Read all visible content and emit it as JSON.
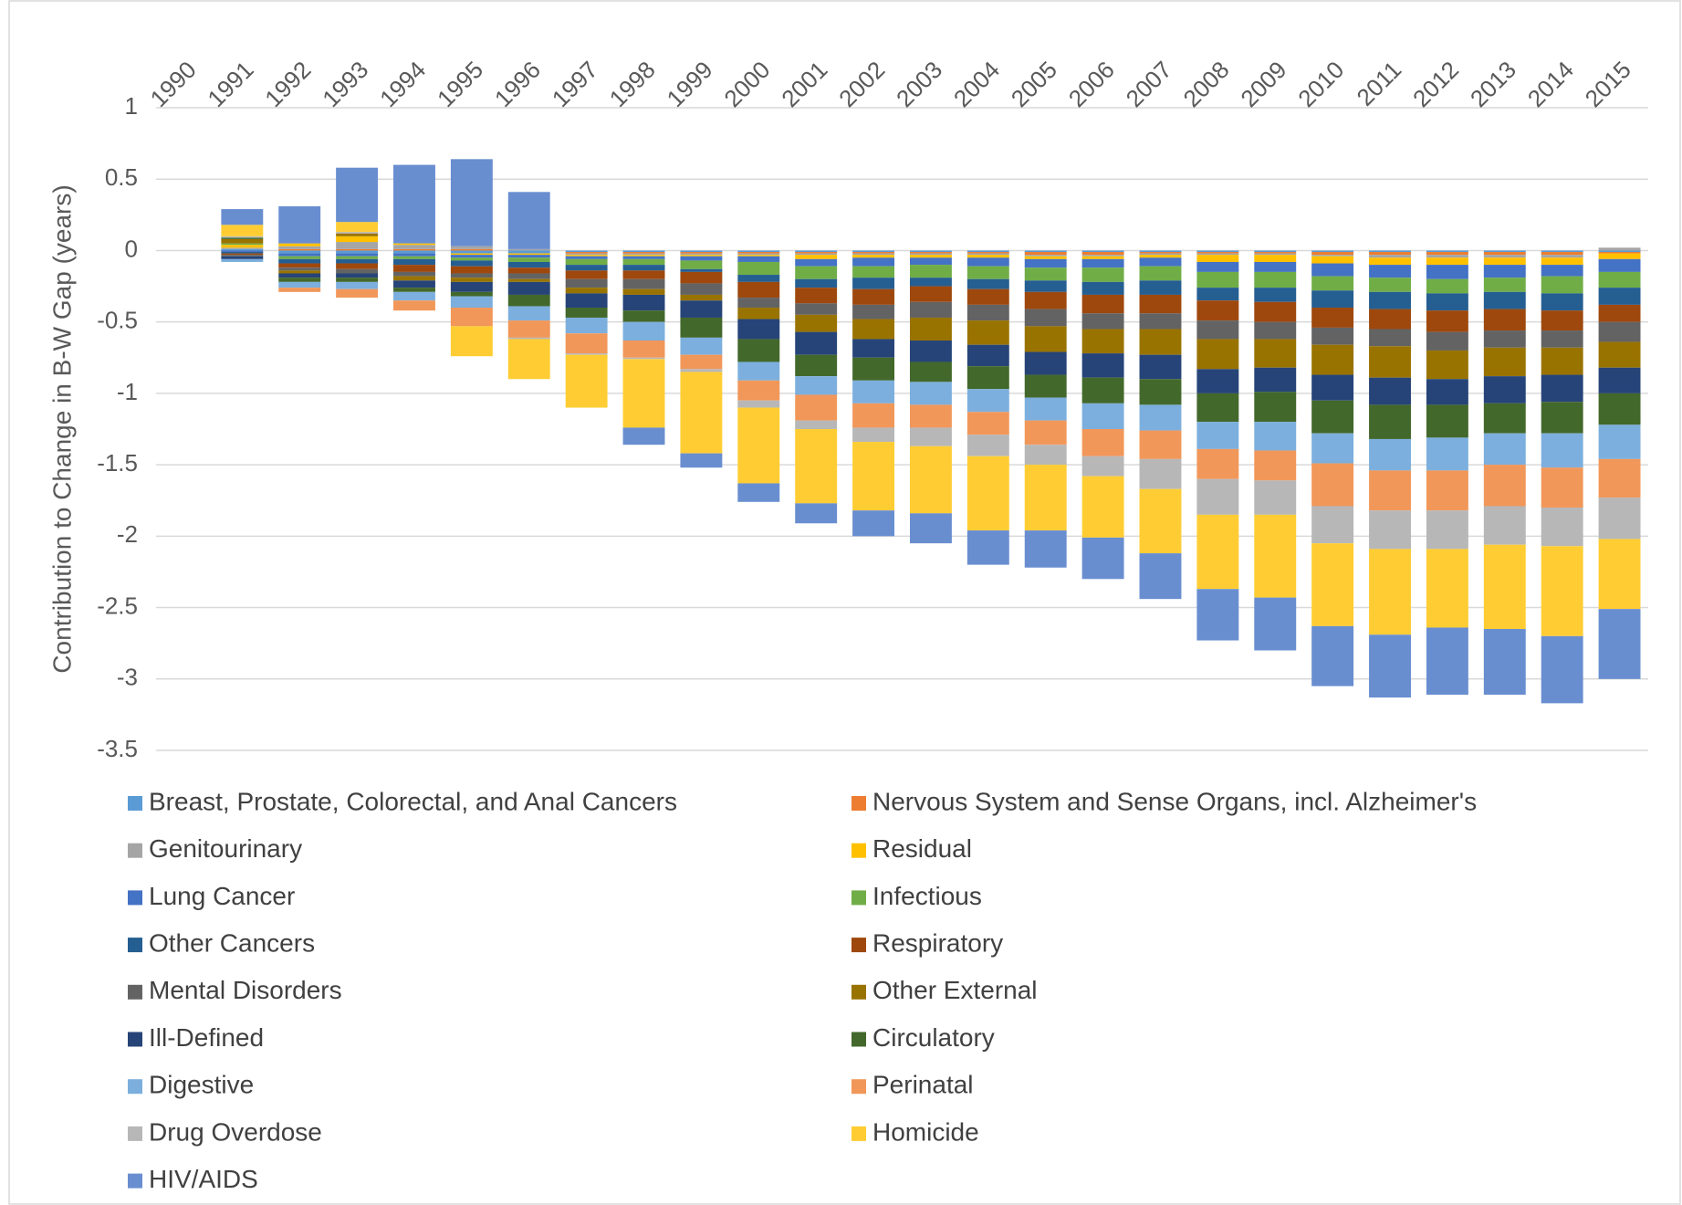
{
  "chart_data": {
    "type": "stacked_bar",
    "y_label": "Contribution to Change in B-W Gap (years)",
    "categories": [
      "1990",
      "1991",
      "1992",
      "1993",
      "1994",
      "1995",
      "1996",
      "1997",
      "1998",
      "1999",
      "2000",
      "2001",
      "2002",
      "2003",
      "2004",
      "2005",
      "2006",
      "2007",
      "2008",
      "2009",
      "2010",
      "2011",
      "2012",
      "2013",
      "2014",
      "2015"
    ],
    "ylim": [
      -3.5,
      1
    ],
    "yticks": [
      1,
      0.5,
      0,
      -0.5,
      -1,
      -1.5,
      -2,
      -2.5,
      -3,
      -3.5
    ],
    "grid": true,
    "legend": "bottom",
    "series": [
      {
        "name": "Breast, Prostate, Colorectal, and Anal Cancers",
        "color": "#5B9BD5",
        "values": [
          0,
          0.01,
          -0.02,
          -0.02,
          -0.02,
          -0.02,
          -0.02,
          -0.01,
          -0.01,
          -0.01,
          -0.01,
          -0.01,
          -0.01,
          -0.01,
          -0.01,
          -0.01,
          -0.01,
          -0.01,
          -0.01,
          -0.01,
          -0.01,
          -0.01,
          -0.01,
          -0.01,
          -0.01,
          -0.01
        ]
      },
      {
        "name": "Nervous System and Sense Organs, incl. Alzheimer's",
        "color": "#ED7D31",
        "values": [
          0,
          0,
          0.01,
          0.01,
          0.01,
          0.01,
          0,
          -0.01,
          -0.01,
          -0.01,
          -0.01,
          -0.01,
          -0.01,
          -0.01,
          -0.01,
          -0.02,
          -0.02,
          -0.01,
          -0.01,
          -0.01,
          -0.02,
          -0.02,
          -0.02,
          -0.02,
          -0.02,
          -0.01
        ]
      },
      {
        "name": "Genitourinary",
        "color": "#A5A5A5",
        "values": [
          0,
          0.01,
          0.02,
          0.05,
          0.03,
          0.02,
          0.01,
          -0.01,
          -0.01,
          -0.01,
          -0.01,
          -0.01,
          -0.01,
          -0.01,
          -0.01,
          -0.01,
          -0.01,
          -0.01,
          -0.01,
          -0.01,
          -0.01,
          -0.02,
          -0.02,
          -0.02,
          -0.02,
          0.02
        ]
      },
      {
        "name": "Residual",
        "color": "#FFC000",
        "values": [
          0,
          0.02,
          0.02,
          0.04,
          0.01,
          -0.01,
          -0.01,
          -0.01,
          -0.01,
          -0.01,
          -0.01,
          -0.03,
          -0.02,
          -0.02,
          -0.02,
          -0.02,
          -0.02,
          -0.02,
          -0.05,
          -0.05,
          -0.05,
          -0.05,
          -0.05,
          -0.05,
          -0.05,
          -0.04
        ]
      },
      {
        "name": "Lung Cancer",
        "color": "#4472C4",
        "values": [
          0,
          -0.01,
          -0.02,
          -0.02,
          -0.02,
          -0.02,
          -0.02,
          -0.02,
          -0.02,
          -0.03,
          -0.04,
          -0.05,
          -0.06,
          -0.05,
          -0.06,
          -0.06,
          -0.06,
          -0.06,
          -0.07,
          -0.07,
          -0.09,
          -0.09,
          -0.1,
          -0.09,
          -0.08,
          -0.09
        ]
      },
      {
        "name": "Infectious",
        "color": "#70AD47",
        "values": [
          0,
          0.01,
          -0.02,
          -0.02,
          -0.02,
          -0.02,
          -0.03,
          -0.04,
          -0.04,
          -0.06,
          -0.09,
          -0.09,
          -0.08,
          -0.09,
          -0.09,
          -0.09,
          -0.1,
          -0.1,
          -0.11,
          -0.11,
          -0.1,
          -0.1,
          -0.1,
          -0.1,
          -0.12,
          -0.11
        ]
      },
      {
        "name": "Other Cancers",
        "color": "#255E91",
        "values": [
          0,
          -0.01,
          -0.03,
          -0.03,
          -0.04,
          -0.04,
          -0.04,
          -0.04,
          -0.04,
          -0.02,
          -0.05,
          -0.06,
          -0.08,
          -0.06,
          -0.07,
          -0.08,
          -0.09,
          -0.1,
          -0.09,
          -0.1,
          -0.12,
          -0.12,
          -0.12,
          -0.12,
          -0.12,
          -0.12
        ]
      },
      {
        "name": "Respiratory",
        "color": "#9E480E",
        "values": [
          0,
          -0.01,
          -0.03,
          -0.04,
          -0.05,
          -0.05,
          -0.04,
          -0.06,
          -0.06,
          -0.08,
          -0.11,
          -0.11,
          -0.11,
          -0.11,
          -0.11,
          -0.12,
          -0.13,
          -0.13,
          -0.14,
          -0.14,
          -0.14,
          -0.14,
          -0.15,
          -0.15,
          -0.14,
          -0.12
        ]
      },
      {
        "name": "Mental Disorders",
        "color": "#636363",
        "values": [
          0,
          -0.01,
          -0.02,
          -0.03,
          -0.03,
          -0.03,
          -0.04,
          -0.06,
          -0.07,
          -0.08,
          -0.07,
          -0.08,
          -0.1,
          -0.11,
          -0.11,
          -0.12,
          -0.11,
          -0.11,
          -0.13,
          -0.12,
          -0.12,
          -0.12,
          -0.13,
          -0.12,
          -0.12,
          -0.14
        ]
      },
      {
        "name": "Other External",
        "color": "#997300",
        "values": [
          0,
          0.03,
          -0.02,
          0.02,
          -0.03,
          -0.03,
          -0.02,
          -0.04,
          -0.04,
          -0.04,
          -0.08,
          -0.12,
          -0.14,
          -0.16,
          -0.17,
          -0.18,
          -0.17,
          -0.18,
          -0.21,
          -0.2,
          -0.21,
          -0.22,
          -0.2,
          -0.2,
          -0.19,
          -0.18
        ]
      },
      {
        "name": "Ill-Defined",
        "color": "#264478",
        "values": [
          0,
          -0.02,
          -0.03,
          -0.03,
          -0.05,
          -0.07,
          -0.09,
          -0.1,
          -0.11,
          -0.12,
          -0.14,
          -0.16,
          -0.13,
          -0.15,
          -0.15,
          -0.16,
          -0.17,
          -0.17,
          -0.17,
          -0.17,
          -0.18,
          -0.19,
          -0.18,
          -0.19,
          -0.19,
          -0.18
        ]
      },
      {
        "name": "Circulatory",
        "color": "#43682B",
        "values": [
          0,
          0.01,
          -0.03,
          -0.03,
          -0.03,
          -0.03,
          -0.08,
          -0.07,
          -0.08,
          -0.14,
          -0.16,
          -0.15,
          -0.16,
          -0.14,
          -0.16,
          -0.16,
          -0.18,
          -0.18,
          -0.2,
          -0.21,
          -0.23,
          -0.24,
          -0.23,
          -0.21,
          -0.22,
          -0.22
        ]
      },
      {
        "name": "Digestive",
        "color": "#7CAFDD",
        "values": [
          0,
          -0.02,
          -0.04,
          -0.05,
          -0.06,
          -0.08,
          -0.1,
          -0.11,
          -0.13,
          -0.12,
          -0.13,
          -0.13,
          -0.16,
          -0.16,
          -0.16,
          -0.16,
          -0.18,
          -0.18,
          -0.19,
          -0.2,
          -0.21,
          -0.22,
          -0.23,
          -0.22,
          -0.24,
          -0.24
        ]
      },
      {
        "name": "Perinatal",
        "color": "#F1975A",
        "values": [
          0,
          0,
          -0.03,
          -0.06,
          -0.07,
          -0.13,
          -0.12,
          -0.14,
          -0.12,
          -0.1,
          -0.14,
          -0.18,
          -0.17,
          -0.16,
          -0.16,
          -0.17,
          -0.19,
          -0.2,
          -0.21,
          -0.21,
          -0.3,
          -0.28,
          -0.28,
          -0.29,
          -0.28,
          -0.27
        ]
      },
      {
        "name": "Drug Overdose",
        "color": "#B7B7B7",
        "values": [
          0,
          0.01,
          0,
          0.01,
          0,
          0,
          -0.01,
          -0.01,
          -0.01,
          -0.02,
          -0.05,
          -0.06,
          -0.1,
          -0.13,
          -0.15,
          -0.14,
          -0.14,
          -0.21,
          -0.25,
          -0.24,
          -0.26,
          -0.27,
          -0.27,
          -0.27,
          -0.27,
          -0.29
        ]
      },
      {
        "name": "Homicide",
        "color": "#FFCD33",
        "values": [
          0,
          0.08,
          0,
          0.07,
          0,
          -0.21,
          -0.28,
          -0.37,
          -0.48,
          -0.57,
          -0.53,
          -0.52,
          -0.48,
          -0.47,
          -0.52,
          -0.46,
          -0.43,
          -0.45,
          -0.52,
          -0.58,
          -0.58,
          -0.6,
          -0.55,
          -0.59,
          -0.63,
          -0.49
        ]
      },
      {
        "name": "HIV/AIDS",
        "color": "#698ED0",
        "values": [
          0,
          0.11,
          0.26,
          0.38,
          0.55,
          0.61,
          0.4,
          0,
          -0.12,
          -0.1,
          -0.13,
          -0.14,
          -0.18,
          -0.21,
          -0.24,
          -0.26,
          -0.29,
          -0.32,
          -0.36,
          -0.37,
          -0.42,
          -0.44,
          -0.47,
          -0.46,
          -0.47,
          -0.49
        ]
      }
    ]
  }
}
